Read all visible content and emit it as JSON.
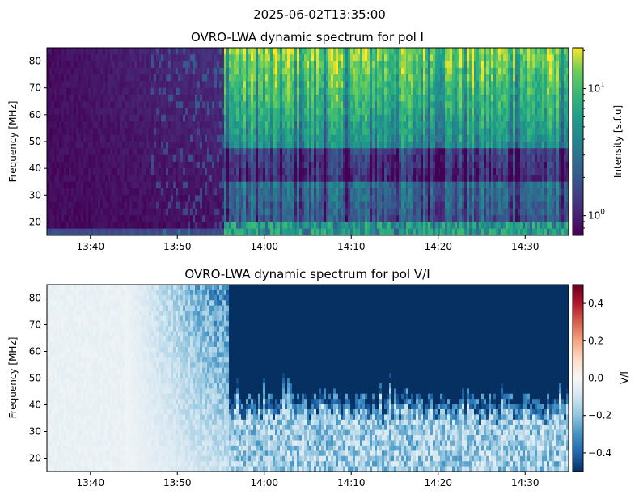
{
  "figure": {
    "suptitle": "2025-06-02T13:35:00"
  },
  "chart_data": [
    {
      "type": "heatmap",
      "title": "OVRO-LWA dynamic spectrum for pol I",
      "xlabel": "",
      "ylabel": "Frequency [MHz]",
      "xlim": [
        "13:35",
        "14:35"
      ],
      "ylim": [
        15,
        85
      ],
      "x_ticks": [
        "13:40",
        "13:50",
        "14:00",
        "14:10",
        "14:20",
        "14:30"
      ],
      "y_ticks": [
        20,
        30,
        40,
        50,
        60,
        70,
        80
      ],
      "colormap": "viridis",
      "color_scale": "log",
      "color_range": [
        0.7,
        21
      ],
      "colorbar_label": "Intensity [s.f.u]",
      "colorbar_ticks": [
        "10^0",
        "10^1"
      ],
      "burst_onset": "13:56",
      "pre_onset_level": 0.9,
      "post_onset_level": 12
    },
    {
      "type": "heatmap",
      "title": "OVRO-LWA dynamic spectrum for pol V/I",
      "xlabel": "",
      "ylabel": "Frequency [MHz]",
      "xlim": [
        "13:35",
        "14:35"
      ],
      "ylim": [
        15,
        85
      ],
      "x_ticks": [
        "13:40",
        "13:50",
        "14:00",
        "14:10",
        "14:20",
        "14:30"
      ],
      "y_ticks": [
        20,
        30,
        40,
        50,
        60,
        70,
        80
      ],
      "colormap": "RdBu_r",
      "color_scale": "linear",
      "color_range": [
        -0.5,
        0.5
      ],
      "colorbar_label": "V/I",
      "colorbar_ticks": [
        0.4,
        0.2,
        0.0,
        -0.2,
        -0.4
      ],
      "colorbar_tick_labels": [
        "0.4",
        "0.2",
        "0.0",
        "−0.2",
        "−0.4"
      ],
      "burst_onset": "13:56",
      "post_onset_value": -0.5,
      "boundary_freq_mhz": 42
    }
  ]
}
